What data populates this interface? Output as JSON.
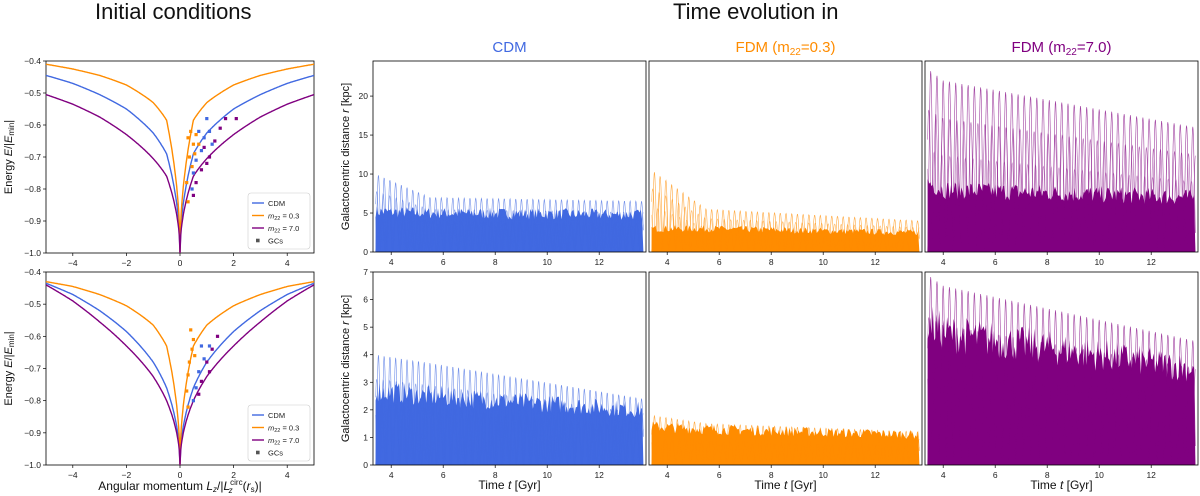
{
  "headings": {
    "left": "Initial conditions",
    "right": "Time evolution in"
  },
  "columns": [
    {
      "label": "CDM",
      "color": "#4169e1"
    },
    {
      "label": "FDM (m22=0.3)",
      "label_main": "FDM (m",
      "label_sub": "22",
      "label_tail": "=0.3)",
      "color": "#ff8c00"
    },
    {
      "label": "FDM (m22=7.0)",
      "label_main": "FDM (m",
      "label_sub": "22",
      "label_tail": "=7.0)",
      "color": "#800080"
    }
  ],
  "colors": {
    "cdm": "#4169e1",
    "fdm03": "#ff8c00",
    "fdm70": "#800080",
    "gcs": "#555555"
  },
  "chart_data": [
    {
      "type": "line",
      "panel": "initial-conditions-top",
      "xlabel": "",
      "ylabel": "Energy E/|E_min|",
      "xlim": [
        -5,
        5
      ],
      "ylim": [
        -1.0,
        -0.4
      ],
      "xticks": [
        -4,
        -2,
        0,
        2,
        4
      ],
      "yticks": [
        -1.0,
        -0.9,
        -0.8,
        -0.7,
        -0.6,
        -0.5,
        -0.4
      ],
      "legend_position": "bottom-right",
      "legend": [
        "CDM",
        "m22 = 0.3",
        "m22 = 7.0",
        "GCs"
      ],
      "series": [
        {
          "name": "CDM",
          "x": [
            -5,
            -4,
            -3,
            -2,
            -1,
            -0.5,
            0,
            0.5,
            1,
            2,
            3,
            4,
            5
          ],
          "y": [
            -0.445,
            -0.47,
            -0.505,
            -0.55,
            -0.625,
            -0.69,
            -1.0,
            -0.69,
            -0.625,
            -0.55,
            -0.505,
            -0.47,
            -0.445
          ]
        },
        {
          "name": "m22 = 0.3",
          "x": [
            -5,
            -4,
            -3,
            -2,
            -1,
            -0.5,
            0,
            0.5,
            1,
            2,
            3,
            4,
            5
          ],
          "y": [
            -0.41,
            -0.425,
            -0.445,
            -0.475,
            -0.53,
            -0.585,
            -1.0,
            -0.585,
            -0.53,
            -0.475,
            -0.445,
            -0.425,
            -0.41
          ]
        },
        {
          "name": "m22 = 7.0",
          "x": [
            -5,
            -4,
            -3,
            -2,
            -1,
            -0.5,
            0,
            0.5,
            1,
            2,
            3,
            4,
            5
          ],
          "y": [
            -0.505,
            -0.535,
            -0.575,
            -0.63,
            -0.705,
            -0.76,
            -1.0,
            -0.76,
            -0.705,
            -0.63,
            -0.575,
            -0.535,
            -0.505
          ]
        }
      ],
      "scatter": [
        {
          "x": 0.3,
          "y": -0.64,
          "s": "fdm03"
        },
        {
          "x": 0.4,
          "y": -0.62,
          "s": "fdm03"
        },
        {
          "x": 0.5,
          "y": -0.66,
          "s": "fdm03"
        },
        {
          "x": 0.6,
          "y": -0.63,
          "s": "fdm03"
        },
        {
          "x": 0.35,
          "y": -0.7,
          "s": "fdm03"
        },
        {
          "x": 0.45,
          "y": -0.73,
          "s": "fdm03"
        },
        {
          "x": 0.25,
          "y": -0.78,
          "s": "fdm03"
        },
        {
          "x": 0.3,
          "y": -0.84,
          "s": "fdm03"
        },
        {
          "x": 0.55,
          "y": -0.69,
          "s": "fdm03"
        },
        {
          "x": 0.7,
          "y": -0.66,
          "s": "fdm03"
        },
        {
          "x": 0.7,
          "y": -0.62,
          "s": "cdm"
        },
        {
          "x": 0.9,
          "y": -0.64,
          "s": "cdm"
        },
        {
          "x": 1.1,
          "y": -0.62,
          "s": "cdm"
        },
        {
          "x": 0.8,
          "y": -0.68,
          "s": "cdm"
        },
        {
          "x": 0.6,
          "y": -0.71,
          "s": "cdm"
        },
        {
          "x": 1.0,
          "y": -0.58,
          "s": "cdm"
        },
        {
          "x": 0.5,
          "y": -0.75,
          "s": "cdm"
        },
        {
          "x": 0.45,
          "y": -0.8,
          "s": "cdm"
        },
        {
          "x": 1.2,
          "y": -0.66,
          "s": "cdm"
        },
        {
          "x": 0.9,
          "y": -0.67,
          "s": "fdm70"
        },
        {
          "x": 1.1,
          "y": -0.7,
          "s": "fdm70"
        },
        {
          "x": 1.3,
          "y": -0.65,
          "s": "fdm70"
        },
        {
          "x": 1.5,
          "y": -0.61,
          "s": "fdm70"
        },
        {
          "x": 0.8,
          "y": -0.74,
          "s": "fdm70"
        },
        {
          "x": 0.6,
          "y": -0.78,
          "s": "fdm70"
        },
        {
          "x": 2.1,
          "y": -0.58,
          "s": "fdm70"
        },
        {
          "x": 1.7,
          "y": -0.58,
          "s": "fdm70"
        },
        {
          "x": 0.5,
          "y": -0.82,
          "s": "fdm70"
        },
        {
          "x": 1.0,
          "y": -0.72,
          "s": "fdm70"
        }
      ]
    },
    {
      "type": "line",
      "panel": "initial-conditions-bottom",
      "xlabel": "Angular momentum L_z/|L_z^circ(r_s)|",
      "ylabel": "Energy E/|E_min|",
      "xlim": [
        -5,
        5
      ],
      "ylim": [
        -1.0,
        -0.4
      ],
      "xticks": [
        -4,
        -2,
        0,
        2,
        4
      ],
      "yticks": [
        -1.0,
        -0.9,
        -0.8,
        -0.7,
        -0.6,
        -0.5,
        -0.4
      ],
      "legend_position": "bottom-right",
      "legend": [
        "CDM",
        "m22 = 0.3",
        "m22 = 7.0",
        "GCs"
      ],
      "series": [
        {
          "name": "CDM",
          "x": [
            -5,
            -4,
            -3,
            -2,
            -1,
            -0.5,
            0,
            0.5,
            1,
            2,
            3,
            4,
            5
          ],
          "y": [
            -0.435,
            -0.47,
            -0.52,
            -0.585,
            -0.68,
            -0.76,
            -1.0,
            -0.76,
            -0.68,
            -0.585,
            -0.52,
            -0.47,
            -0.435
          ]
        },
        {
          "name": "m22 = 0.3",
          "x": [
            -5,
            -4,
            -3,
            -2,
            -1,
            -0.5,
            0,
            0.5,
            1,
            2,
            3,
            4,
            5
          ],
          "y": [
            -0.43,
            -0.445,
            -0.47,
            -0.505,
            -0.565,
            -0.63,
            -1.0,
            -0.63,
            -0.565,
            -0.505,
            -0.47,
            -0.445,
            -0.43
          ]
        },
        {
          "name": "m22 = 7.0",
          "x": [
            -5,
            -4,
            -3,
            -2,
            -1,
            -0.5,
            0,
            0.5,
            1,
            2,
            3,
            4,
            5
          ],
          "y": [
            -0.44,
            -0.49,
            -0.555,
            -0.63,
            -0.725,
            -0.8,
            -1.0,
            -0.8,
            -0.725,
            -0.63,
            -0.555,
            -0.49,
            -0.44
          ]
        }
      ],
      "scatter": [
        {
          "x": 0.4,
          "y": -0.58,
          "s": "fdm03"
        },
        {
          "x": 0.5,
          "y": -0.61,
          "s": "fdm03"
        },
        {
          "x": 0.45,
          "y": -0.64,
          "s": "fdm03"
        },
        {
          "x": 0.35,
          "y": -0.68,
          "s": "fdm03"
        },
        {
          "x": 0.3,
          "y": -0.72,
          "s": "fdm03"
        },
        {
          "x": 0.25,
          "y": -0.77,
          "s": "fdm03"
        },
        {
          "x": 0.55,
          "y": -0.66,
          "s": "fdm03"
        },
        {
          "x": 0.3,
          "y": -0.82,
          "s": "fdm03"
        },
        {
          "x": 0.8,
          "y": -0.63,
          "s": "cdm"
        },
        {
          "x": 0.9,
          "y": -0.67,
          "s": "cdm"
        },
        {
          "x": 1.1,
          "y": -0.63,
          "s": "cdm"
        },
        {
          "x": 0.7,
          "y": -0.71,
          "s": "cdm"
        },
        {
          "x": 0.6,
          "y": -0.76,
          "s": "cdm"
        },
        {
          "x": 0.5,
          "y": -0.8,
          "s": "cdm"
        },
        {
          "x": 1.0,
          "y": -0.68,
          "s": "fdm70"
        },
        {
          "x": 1.2,
          "y": -0.64,
          "s": "fdm70"
        },
        {
          "x": 1.4,
          "y": -0.6,
          "s": "fdm70"
        },
        {
          "x": 0.8,
          "y": -0.74,
          "s": "fdm70"
        },
        {
          "x": 0.7,
          "y": -0.78,
          "s": "fdm70"
        },
        {
          "x": 1.1,
          "y": -0.71,
          "s": "fdm70"
        }
      ]
    },
    {
      "type": "line",
      "panel": "time-evolution-top",
      "ylabel": "Galactocentric distance r [kpc]",
      "xlabel": "",
      "xlim": [
        3.3,
        13.8
      ],
      "ylim": [
        0,
        24.5
      ],
      "xticks": [
        4,
        6,
        8,
        10,
        12
      ],
      "yticks": [
        0,
        5,
        10,
        15,
        20
      ],
      "series": [
        {
          "name": "CDM",
          "t": [
            3.4,
            5.5,
            13.7
          ],
          "peak_max": [
            10,
            7,
            6.5
          ],
          "band_top": [
            5.2,
            5.0,
            4.8
          ]
        },
        {
          "name": "FDM (m22=0.3)",
          "t": [
            3.4,
            5.5,
            13.7
          ],
          "peak_max": [
            10.5,
            5.5,
            4.0
          ],
          "band_top": [
            3.0,
            3.0,
            2.5
          ]
        },
        {
          "name": "FDM (m22=7.0)",
          "t": [
            3.4,
            4.0,
            13.7
          ],
          "peak_max": [
            23.5,
            22,
            16
          ],
          "band_top": [
            9,
            8,
            7
          ]
        }
      ]
    },
    {
      "type": "line",
      "panel": "time-evolution-bottom",
      "ylabel": "Galactocentric distance r [kpc]",
      "xlabel": "Time t [Gyr]",
      "xlim": [
        3.3,
        13.8
      ],
      "ylim": [
        0,
        7
      ],
      "xticks": [
        4,
        6,
        8,
        10,
        12
      ],
      "yticks": [
        0,
        1,
        2,
        3,
        4,
        5,
        6,
        7
      ],
      "series": [
        {
          "name": "CDM",
          "t": [
            3.4,
            5.5,
            13.7
          ],
          "peak_max": [
            4.0,
            3.7,
            2.4
          ],
          "band_top": [
            2.7,
            2.5,
            2.0
          ]
        },
        {
          "name": "FDM (m22=0.3)",
          "t": [
            3.4,
            5.5,
            13.7
          ],
          "peak_max": [
            1.8,
            1.5,
            1.2
          ],
          "band_top": [
            1.4,
            1.3,
            1.1
          ]
        },
        {
          "name": "FDM (m22=7.0)",
          "t": [
            3.4,
            4.0,
            13.7
          ],
          "peak_max": [
            6.9,
            6.5,
            4.5
          ],
          "band_top": [
            5.2,
            4.8,
            3.5
          ]
        }
      ]
    }
  ],
  "legend_labels": {
    "cdm": "CDM",
    "fdm03_main": "m",
    "fdm03_sub": "22",
    "fdm03_tail": " = 0.3",
    "fdm70_main": "m",
    "fdm70_sub": "22",
    "fdm70_tail": " = 7.0",
    "gcs": "GCs"
  },
  "axis_labels": {
    "energy_main": "Energy ",
    "energy_italic": "E",
    "energy_rest": "/|",
    "energy_italic2": "E",
    "energy_sub": "min",
    "energy_close": "|",
    "angmom": "Angular momentum L",
    "distance_main": "Galactocentric distance ",
    "distance_italic": "r",
    "distance_unit": " [kpc]",
    "time_main": "Time ",
    "time_italic": "t",
    "time_unit": " [Gyr]"
  }
}
